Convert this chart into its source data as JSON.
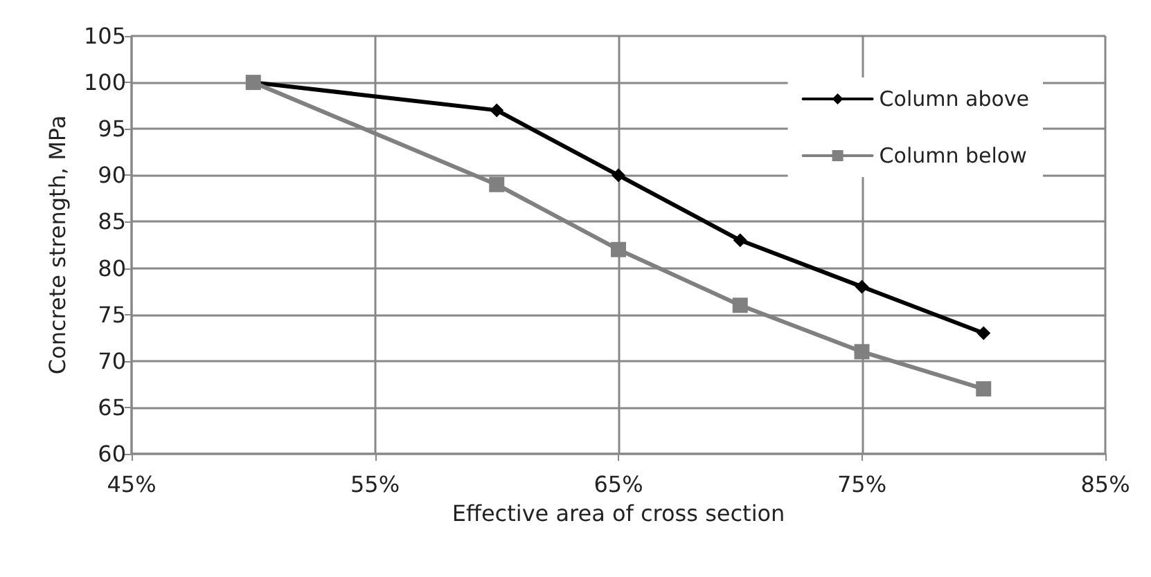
{
  "chart_data": {
    "type": "line",
    "xlabel": "Effective area of cross section",
    "ylabel": "Concrete strength, MPa",
    "x": [
      50,
      60,
      65,
      70,
      75,
      80
    ],
    "series": [
      {
        "name": "Column above",
        "color": "#000000",
        "marker": "diamond",
        "values": [
          100,
          97,
          90,
          83,
          78,
          73
        ]
      },
      {
        "name": "Column below",
        "color": "#808080",
        "marker": "square",
        "values": [
          100,
          89,
          82,
          76,
          71,
          67
        ]
      }
    ],
    "xlim": [
      45,
      85
    ],
    "xticks": [
      {
        "value": 45,
        "label": "45%"
      },
      {
        "value": 55,
        "label": "55%"
      },
      {
        "value": 65,
        "label": "65%"
      },
      {
        "value": 75,
        "label": "75%"
      },
      {
        "value": 85,
        "label": "85%"
      }
    ],
    "ylim": [
      60,
      105
    ],
    "yticks": [
      60,
      65,
      70,
      75,
      80,
      85,
      90,
      95,
      100,
      105
    ],
    "grid": true,
    "legend": "top right",
    "line_style": "solid"
  }
}
